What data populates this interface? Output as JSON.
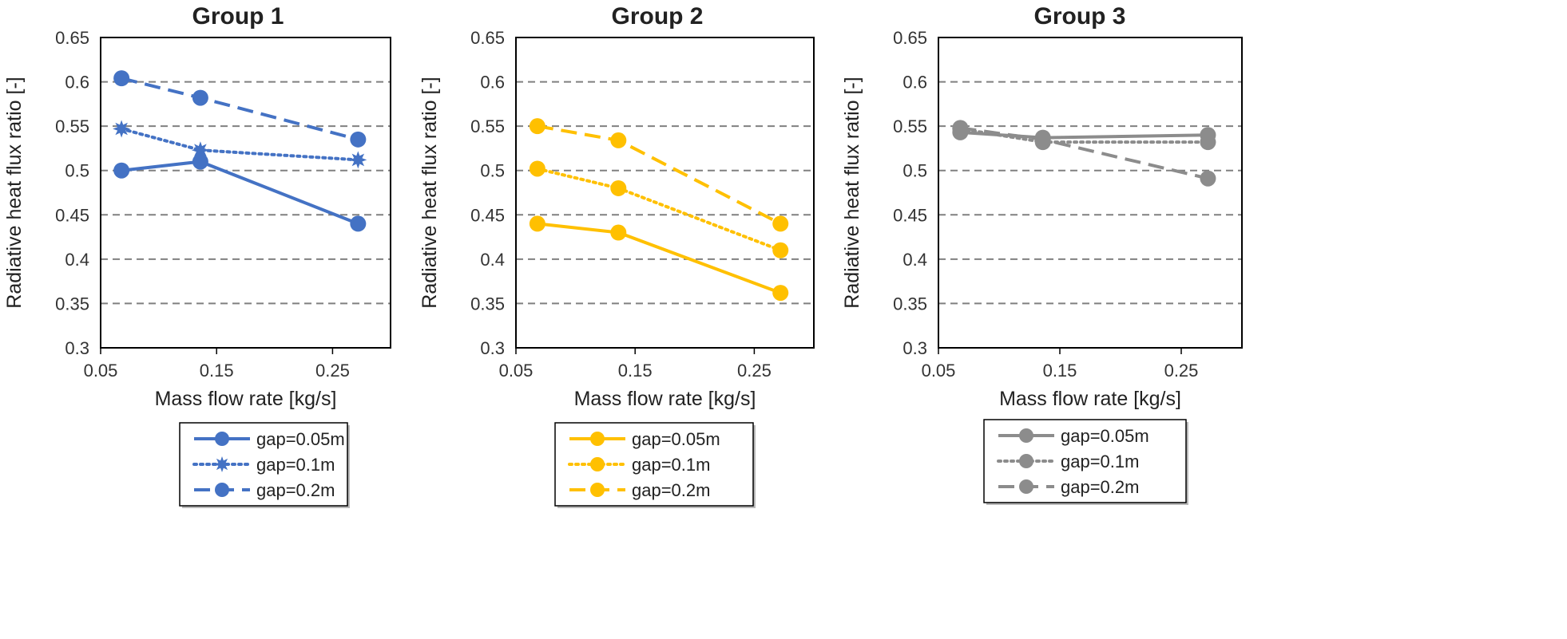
{
  "chart_data": [
    {
      "type": "line",
      "title": "Group 1",
      "xlabel": "Mass flow rate [kg/s]",
      "ylabel": "Radiative  heat flux ratio [-]",
      "xlim": [
        0.05,
        0.3
      ],
      "ylim": [
        0.3,
        0.65
      ],
      "xticks": [
        "0.05",
        "0.15",
        "0.25"
      ],
      "yticks": [
        "0.3",
        "0.35",
        "0.4",
        "0.45",
        "0.5",
        "0.55",
        "0.6",
        "0.65"
      ],
      "grid": "horizontal dashed",
      "color": "#4472C4",
      "legend_position": "bottom",
      "series": [
        {
          "name": "gap=0.05m",
          "style": "solid",
          "marker": "circle",
          "x": [
            0.068,
            0.136,
            0.272
          ],
          "y": [
            0.5,
            0.51,
            0.44
          ]
        },
        {
          "name": "gap=0.1m",
          "style": "dotted",
          "marker": "star",
          "x": [
            0.068,
            0.136,
            0.272
          ],
          "y": [
            0.547,
            0.523,
            0.512
          ]
        },
        {
          "name": "gap=0.2m",
          "style": "dashed",
          "marker": "circle",
          "x": [
            0.068,
            0.136,
            0.272
          ],
          "y": [
            0.604,
            0.582,
            0.535
          ]
        }
      ]
    },
    {
      "type": "line",
      "title": "Group 2",
      "xlabel": "Mass flow rate [kg/s]",
      "ylabel": "Radiative  heat flux ratio [-]",
      "xlim": [
        0.05,
        0.3
      ],
      "ylim": [
        0.3,
        0.65
      ],
      "xticks": [
        "0.05",
        "0.15",
        "0.25"
      ],
      "yticks": [
        "0.3",
        "0.35",
        "0.4",
        "0.45",
        "0.5",
        "0.55",
        "0.6",
        "0.65"
      ],
      "grid": "horizontal dashed",
      "color": "#FFC000",
      "legend_position": "bottom",
      "series": [
        {
          "name": "gap=0.05m",
          "style": "solid",
          "marker": "circle",
          "x": [
            0.068,
            0.136,
            0.272
          ],
          "y": [
            0.44,
            0.43,
            0.362
          ]
        },
        {
          "name": "gap=0.1m",
          "style": "dotted",
          "marker": "circle",
          "x": [
            0.068,
            0.136,
            0.272
          ],
          "y": [
            0.502,
            0.48,
            0.41
          ]
        },
        {
          "name": "gap=0.2m",
          "style": "dashed",
          "marker": "circle",
          "x": [
            0.068,
            0.136,
            0.272
          ],
          "y": [
            0.55,
            0.534,
            0.44
          ]
        }
      ]
    },
    {
      "type": "line",
      "title": "Group 3",
      "xlabel": "Mass flow rate [kg/s]",
      "ylabel": "Radiative  heat flux ratio [-]",
      "xlim": [
        0.05,
        0.3
      ],
      "ylim": [
        0.3,
        0.65
      ],
      "xticks": [
        "0.05",
        "0.15",
        "0.25"
      ],
      "yticks": [
        "0.3",
        "0.35",
        "0.4",
        "0.45",
        "0.5",
        "0.55",
        "0.6",
        "0.65"
      ],
      "grid": "horizontal dashed",
      "color": "#8C8C8C",
      "legend_position": "bottom",
      "series": [
        {
          "name": "gap=0.05m",
          "style": "solid",
          "marker": "circle",
          "x": [
            0.068,
            0.136,
            0.272
          ],
          "y": [
            0.543,
            0.537,
            0.54
          ]
        },
        {
          "name": "gap=0.1m",
          "style": "dotted",
          "marker": "circle",
          "x": [
            0.068,
            0.136,
            0.272
          ],
          "y": [
            0.547,
            0.532,
            0.532
          ]
        },
        {
          "name": "gap=0.2m",
          "style": "dashed",
          "marker": "circle",
          "x": [
            0.068,
            0.136,
            0.272
          ],
          "y": [
            0.548,
            0.535,
            0.491
          ]
        }
      ]
    }
  ]
}
